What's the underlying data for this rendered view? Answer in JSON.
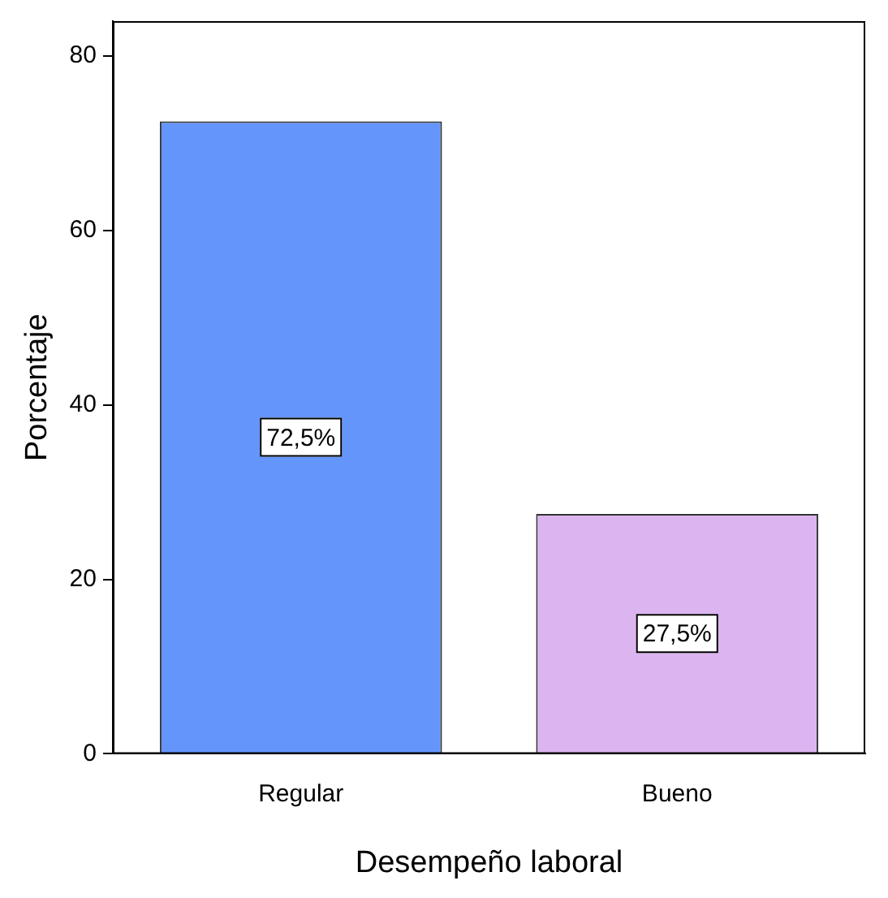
{
  "chart_data": {
    "type": "bar",
    "xlabel": "Desempeño laboral",
    "ylabel": "Porcentaje",
    "categories": [
      "Regular",
      "Bueno"
    ],
    "values": [
      72.5,
      27.5
    ],
    "colors": [
      "#6495fa",
      "#dcb4f0"
    ],
    "value_labels": [
      "72,5%",
      "27,5%"
    ],
    "ylim": [
      0,
      84
    ],
    "yticks": [
      0,
      20,
      40,
      60,
      80
    ],
    "grid": false,
    "legend": false
  }
}
